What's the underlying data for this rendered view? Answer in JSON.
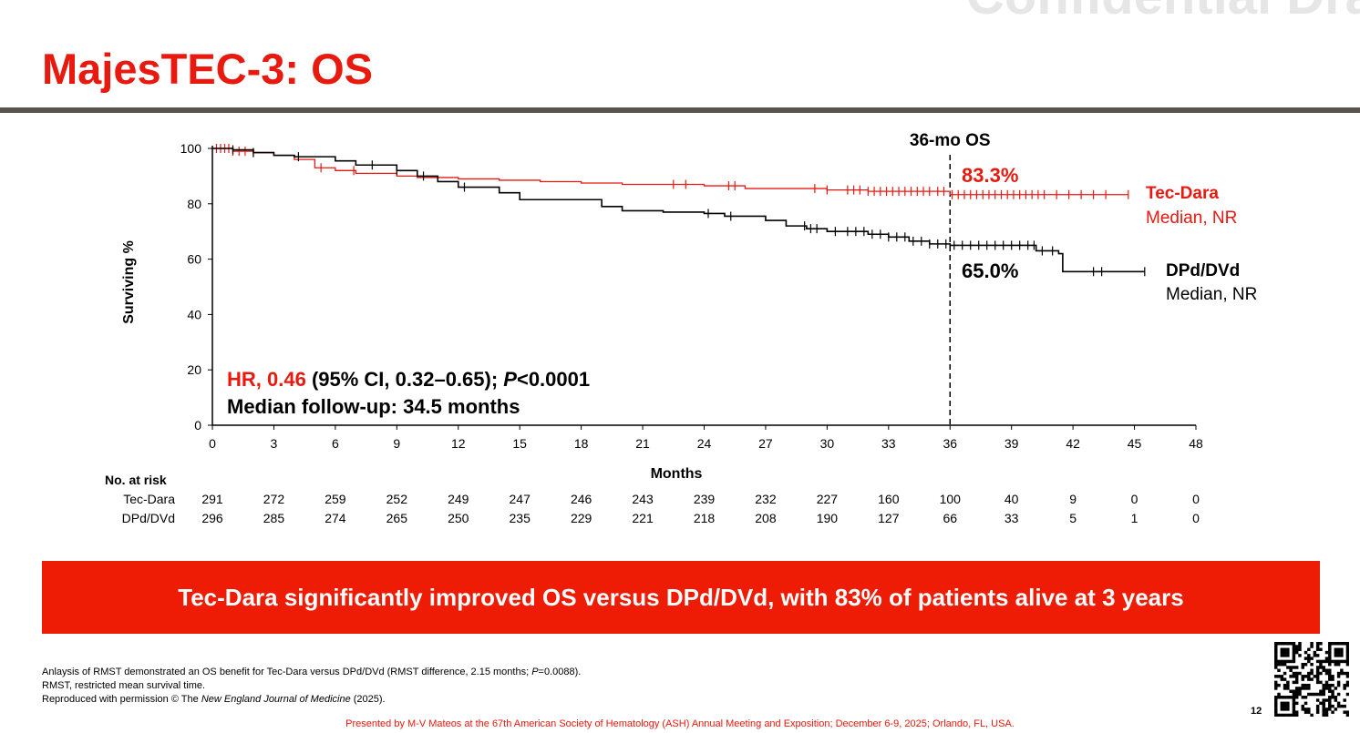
{
  "watermark": "Confidential Draft",
  "title": "MajesTEC-3: OS",
  "chart_data": {
    "type": "line",
    "subtype": "kaplan-meier",
    "xlabel": "Months",
    "ylabel": "Surviving %",
    "xlim": [
      0,
      48
    ],
    "ylim": [
      0,
      100
    ],
    "xticks": [
      0,
      3,
      6,
      9,
      12,
      15,
      18,
      21,
      24,
      27,
      30,
      33,
      36,
      39,
      42,
      45,
      48
    ],
    "yticks": [
      0,
      20,
      40,
      60,
      80,
      100
    ],
    "grid": false,
    "reference_line": {
      "x": 36,
      "label": "36-mo OS"
    },
    "series": [
      {
        "name": "Tec-Dara",
        "sublabel": "Median, NR",
        "color": "#e8190f",
        "landmark_label": "83.3%",
        "steps": [
          [
            0,
            100
          ],
          [
            1,
            99
          ],
          [
            2,
            98.5
          ],
          [
            3,
            97.5
          ],
          [
            4,
            96
          ],
          [
            5,
            93
          ],
          [
            6,
            92
          ],
          [
            7,
            91
          ],
          [
            9,
            90
          ],
          [
            10,
            89.5
          ],
          [
            12,
            89
          ],
          [
            14,
            88.5
          ],
          [
            16,
            88
          ],
          [
            18,
            87.5
          ],
          [
            20,
            87
          ],
          [
            24,
            86.5
          ],
          [
            26,
            85.5
          ],
          [
            30,
            85
          ],
          [
            32,
            84.5
          ],
          [
            36,
            83.3
          ],
          [
            44.7,
            83.3
          ]
        ],
        "censored": [
          0.2,
          0.4,
          0.6,
          0.8,
          1,
          1.3,
          1.6,
          2,
          5.3,
          6.9,
          22.5,
          23.1,
          25.2,
          25.5,
          29.4,
          30,
          31,
          31.3,
          31.6,
          32,
          32.3,
          32.6,
          32.9,
          33.2,
          33.5,
          33.8,
          34.1,
          34.4,
          34.7,
          35,
          35.4,
          35.7,
          36.1,
          36.4,
          36.7,
          37,
          37.3,
          37.6,
          37.9,
          38.2,
          38.5,
          38.8,
          39.1,
          39.4,
          39.7,
          40,
          40.3,
          40.6,
          41.2,
          41.8,
          42.4,
          43,
          43.6,
          44.7
        ]
      },
      {
        "name": "DPd/DVd",
        "sublabel": "Median, NR",
        "color": "#000000",
        "landmark_label": "65.0%",
        "steps": [
          [
            0,
            100
          ],
          [
            1,
            99.5
          ],
          [
            2,
            98.5
          ],
          [
            3,
            97.5
          ],
          [
            4,
            97
          ],
          [
            6,
            95.5
          ],
          [
            7,
            94
          ],
          [
            9,
            92
          ],
          [
            10,
            90
          ],
          [
            11,
            88
          ],
          [
            12,
            86
          ],
          [
            14,
            84
          ],
          [
            15,
            81.5
          ],
          [
            19,
            79
          ],
          [
            20,
            77.5
          ],
          [
            22,
            77
          ],
          [
            24,
            76.5
          ],
          [
            25,
            75.5
          ],
          [
            27,
            74
          ],
          [
            28,
            72
          ],
          [
            29,
            71
          ],
          [
            30,
            70
          ],
          [
            32,
            69
          ],
          [
            33,
            68
          ],
          [
            34,
            66.5
          ],
          [
            35,
            65.5
          ],
          [
            36,
            65
          ],
          [
            40,
            65
          ],
          [
            40.2,
            63
          ],
          [
            41.3,
            62
          ],
          [
            41.5,
            55.5
          ],
          [
            45.5,
            55.5
          ]
        ],
        "censored": [
          1,
          2,
          4.2,
          7.8,
          9,
          10.3,
          12.3,
          24.2,
          25.3,
          28.9,
          29.2,
          29.5,
          30.4,
          31,
          31.4,
          31.8,
          32.2,
          32.6,
          33,
          33.4,
          33.8,
          34.2,
          34.6,
          35,
          35.4,
          35.8,
          36.2,
          36.6,
          37,
          37.4,
          37.8,
          38.2,
          38.6,
          39,
          39.4,
          39.8,
          40.1,
          40.5,
          41,
          43,
          43.4,
          45.5
        ]
      }
    ],
    "annotations": {
      "hr_red": "HR, 0.46",
      "hr_black": " (95% CI, 0.32–0.65); ",
      "p_italic": "P",
      "p_value": "<0.0001",
      "followup": "Median follow-up: 34.5 months"
    },
    "at_risk": {
      "label": "No. at risk",
      "rows": [
        {
          "name": "Tec-Dara",
          "values": [
            291,
            272,
            259,
            252,
            249,
            247,
            246,
            243,
            239,
            232,
            227,
            160,
            100,
            40,
            9,
            0,
            0
          ]
        },
        {
          "name": "DPd/DVd",
          "values": [
            296,
            285,
            274,
            265,
            250,
            235,
            229,
            221,
            218,
            208,
            190,
            127,
            66,
            33,
            5,
            1,
            0
          ]
        }
      ]
    }
  },
  "banner": "Tec-Dara significantly improved OS versus DPd/DVd, with 83% of patients alive at 3 years",
  "footnotes": {
    "line1_a": "Anlaysis of RMST demonstrated an OS benefit for Tec-Dara versus DPd/DVd (RMST difference, 2.15 months; ",
    "line1_p": "P",
    "line1_b": "=0.0088).",
    "line2": "RMST, restricted mean survival time.",
    "line3_a": "Reproduced with permission © The ",
    "line3_i": "New England Journal of Medicine",
    "line3_b": " (2025)."
  },
  "page_number": "12",
  "presenter": "Presented by M-V Mateos at the 67th American Society of Hematology (ASH) Annual Meeting and Exposition; December 6-9, 2025; Orlando, FL, USA.",
  "qr_code": "qr-code-icon"
}
